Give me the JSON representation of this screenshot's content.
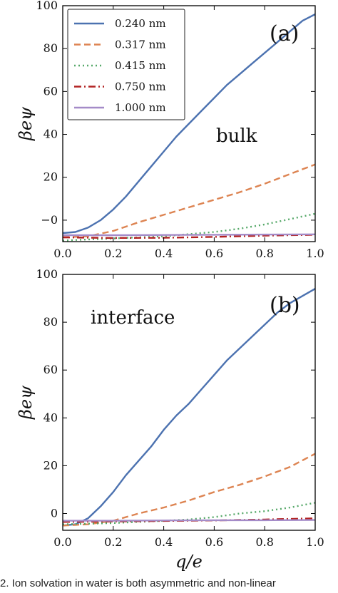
{
  "chart_data": [
    {
      "type": "line",
      "panel_label": "(a)",
      "annotation": "bulk",
      "xlabel": "",
      "ylabel": "βeψ",
      "xlim": [
        0,
        1
      ],
      "ylim": [
        -10,
        100
      ],
      "x_ticks": [
        "0.0",
        "0.2",
        "0.4",
        "0.6",
        "0.8",
        "1.0"
      ],
      "y_ticks": [
        "−0",
        "20",
        "40",
        "60",
        "80",
        "100"
      ],
      "legend_position": "top-left",
      "series": [
        {
          "name": "0.240 nm",
          "color": "#4c72b0",
          "style": "solid",
          "x": [
            0,
            0.05,
            0.1,
            0.15,
            0.2,
            0.25,
            0.3,
            0.35,
            0.4,
            0.45,
            0.5,
            0.55,
            0.6,
            0.65,
            0.7,
            0.75,
            0.8,
            0.85,
            0.9,
            0.95,
            1.0
          ],
          "y": [
            -6,
            -5.5,
            -3.5,
            0,
            5,
            11,
            18,
            25,
            32,
            39,
            45,
            51,
            57,
            63,
            68,
            73,
            78,
            83,
            88,
            93,
            96
          ]
        },
        {
          "name": "0.317 nm",
          "color": "#dd8452",
          "style": "dashed",
          "x": [
            0,
            0.1,
            0.2,
            0.3,
            0.4,
            0.5,
            0.6,
            0.7,
            0.8,
            0.9,
            1.0
          ],
          "y": [
            -8,
            -7.5,
            -5,
            -1,
            2.5,
            6,
            9.5,
            13,
            17,
            21.5,
            26
          ]
        },
        {
          "name": "0.415 nm",
          "color": "#55a868",
          "style": "dotted",
          "x": [
            0,
            0.1,
            0.2,
            0.3,
            0.4,
            0.5,
            0.6,
            0.7,
            0.8,
            0.9,
            1.0
          ],
          "y": [
            -9.5,
            -9,
            -8.5,
            -8,
            -7.5,
            -6.5,
            -5.5,
            -4,
            -2,
            0.5,
            3
          ]
        },
        {
          "name": "0.750 nm",
          "color": "#b22222",
          "style": "dashdot",
          "x": [
            0,
            0.2,
            0.4,
            0.6,
            0.8,
            1.0
          ],
          "y": [
            -8,
            -8.3,
            -8.2,
            -7.8,
            -7.2,
            -6.8
          ]
        },
        {
          "name": "1.000 nm",
          "color": "#a48bc8",
          "style": "solid",
          "x": [
            0,
            0.2,
            0.4,
            0.6,
            0.8,
            1.0
          ],
          "y": [
            -7,
            -7,
            -6.9,
            -6.8,
            -6.7,
            -6.6
          ]
        }
      ]
    },
    {
      "type": "line",
      "panel_label": "(b)",
      "annotation": "interface",
      "xlabel": "q/e",
      "ylabel": "βeψ",
      "xlim": [
        0,
        1
      ],
      "ylim": [
        -7,
        100
      ],
      "x_ticks": [
        "0.0",
        "0.2",
        "0.4",
        "0.6",
        "0.8",
        "1.0"
      ],
      "y_ticks": [
        "0",
        "20",
        "40",
        "60",
        "80",
        "100"
      ],
      "series": [
        {
          "name": "0.240 nm",
          "color": "#4c72b0",
          "style": "solid",
          "x": [
            0,
            0.05,
            0.1,
            0.15,
            0.2,
            0.25,
            0.3,
            0.35,
            0.4,
            0.45,
            0.5,
            0.55,
            0.6,
            0.65,
            0.7,
            0.75,
            0.8,
            0.85,
            0.9,
            0.95,
            1.0
          ],
          "y": [
            -5,
            -4.5,
            -2,
            3,
            9,
            16,
            22,
            28,
            35,
            41,
            46,
            52,
            58,
            64,
            69,
            74,
            79,
            84,
            88,
            91,
            94
          ]
        },
        {
          "name": "0.317 nm",
          "color": "#dd8452",
          "style": "dashed",
          "x": [
            0,
            0.1,
            0.2,
            0.3,
            0.4,
            0.5,
            0.6,
            0.7,
            0.8,
            0.9,
            1.0
          ],
          "y": [
            -5,
            -4.5,
            -3,
            0,
            2.5,
            5.5,
            9,
            12,
            15.5,
            19.5,
            25
          ]
        },
        {
          "name": "0.415 nm",
          "color": "#55a868",
          "style": "dotted",
          "x": [
            0,
            0.2,
            0.4,
            0.5,
            0.6,
            0.7,
            0.8,
            0.9,
            1.0
          ],
          "y": [
            -4.5,
            -4,
            -3,
            -2.5,
            -1.5,
            0,
            1,
            2.5,
            4.5
          ]
        },
        {
          "name": "0.750 nm",
          "color": "#b22222",
          "style": "dashdot",
          "x": [
            0,
            0.2,
            0.4,
            0.6,
            0.8,
            1.0
          ],
          "y": [
            -3.5,
            -3.3,
            -3.1,
            -2.9,
            -2.5,
            -2
          ]
        },
        {
          "name": "1.000 nm",
          "color": "#a48bc8",
          "style": "solid",
          "x": [
            0,
            0.2,
            0.4,
            0.6,
            0.8,
            1.0
          ],
          "y": [
            -3,
            -3,
            -2.9,
            -2.8,
            -2.8,
            -2.7
          ]
        }
      ]
    }
  ],
  "caption": "2. Ion solvation in water is both asymmetric and non-linear"
}
